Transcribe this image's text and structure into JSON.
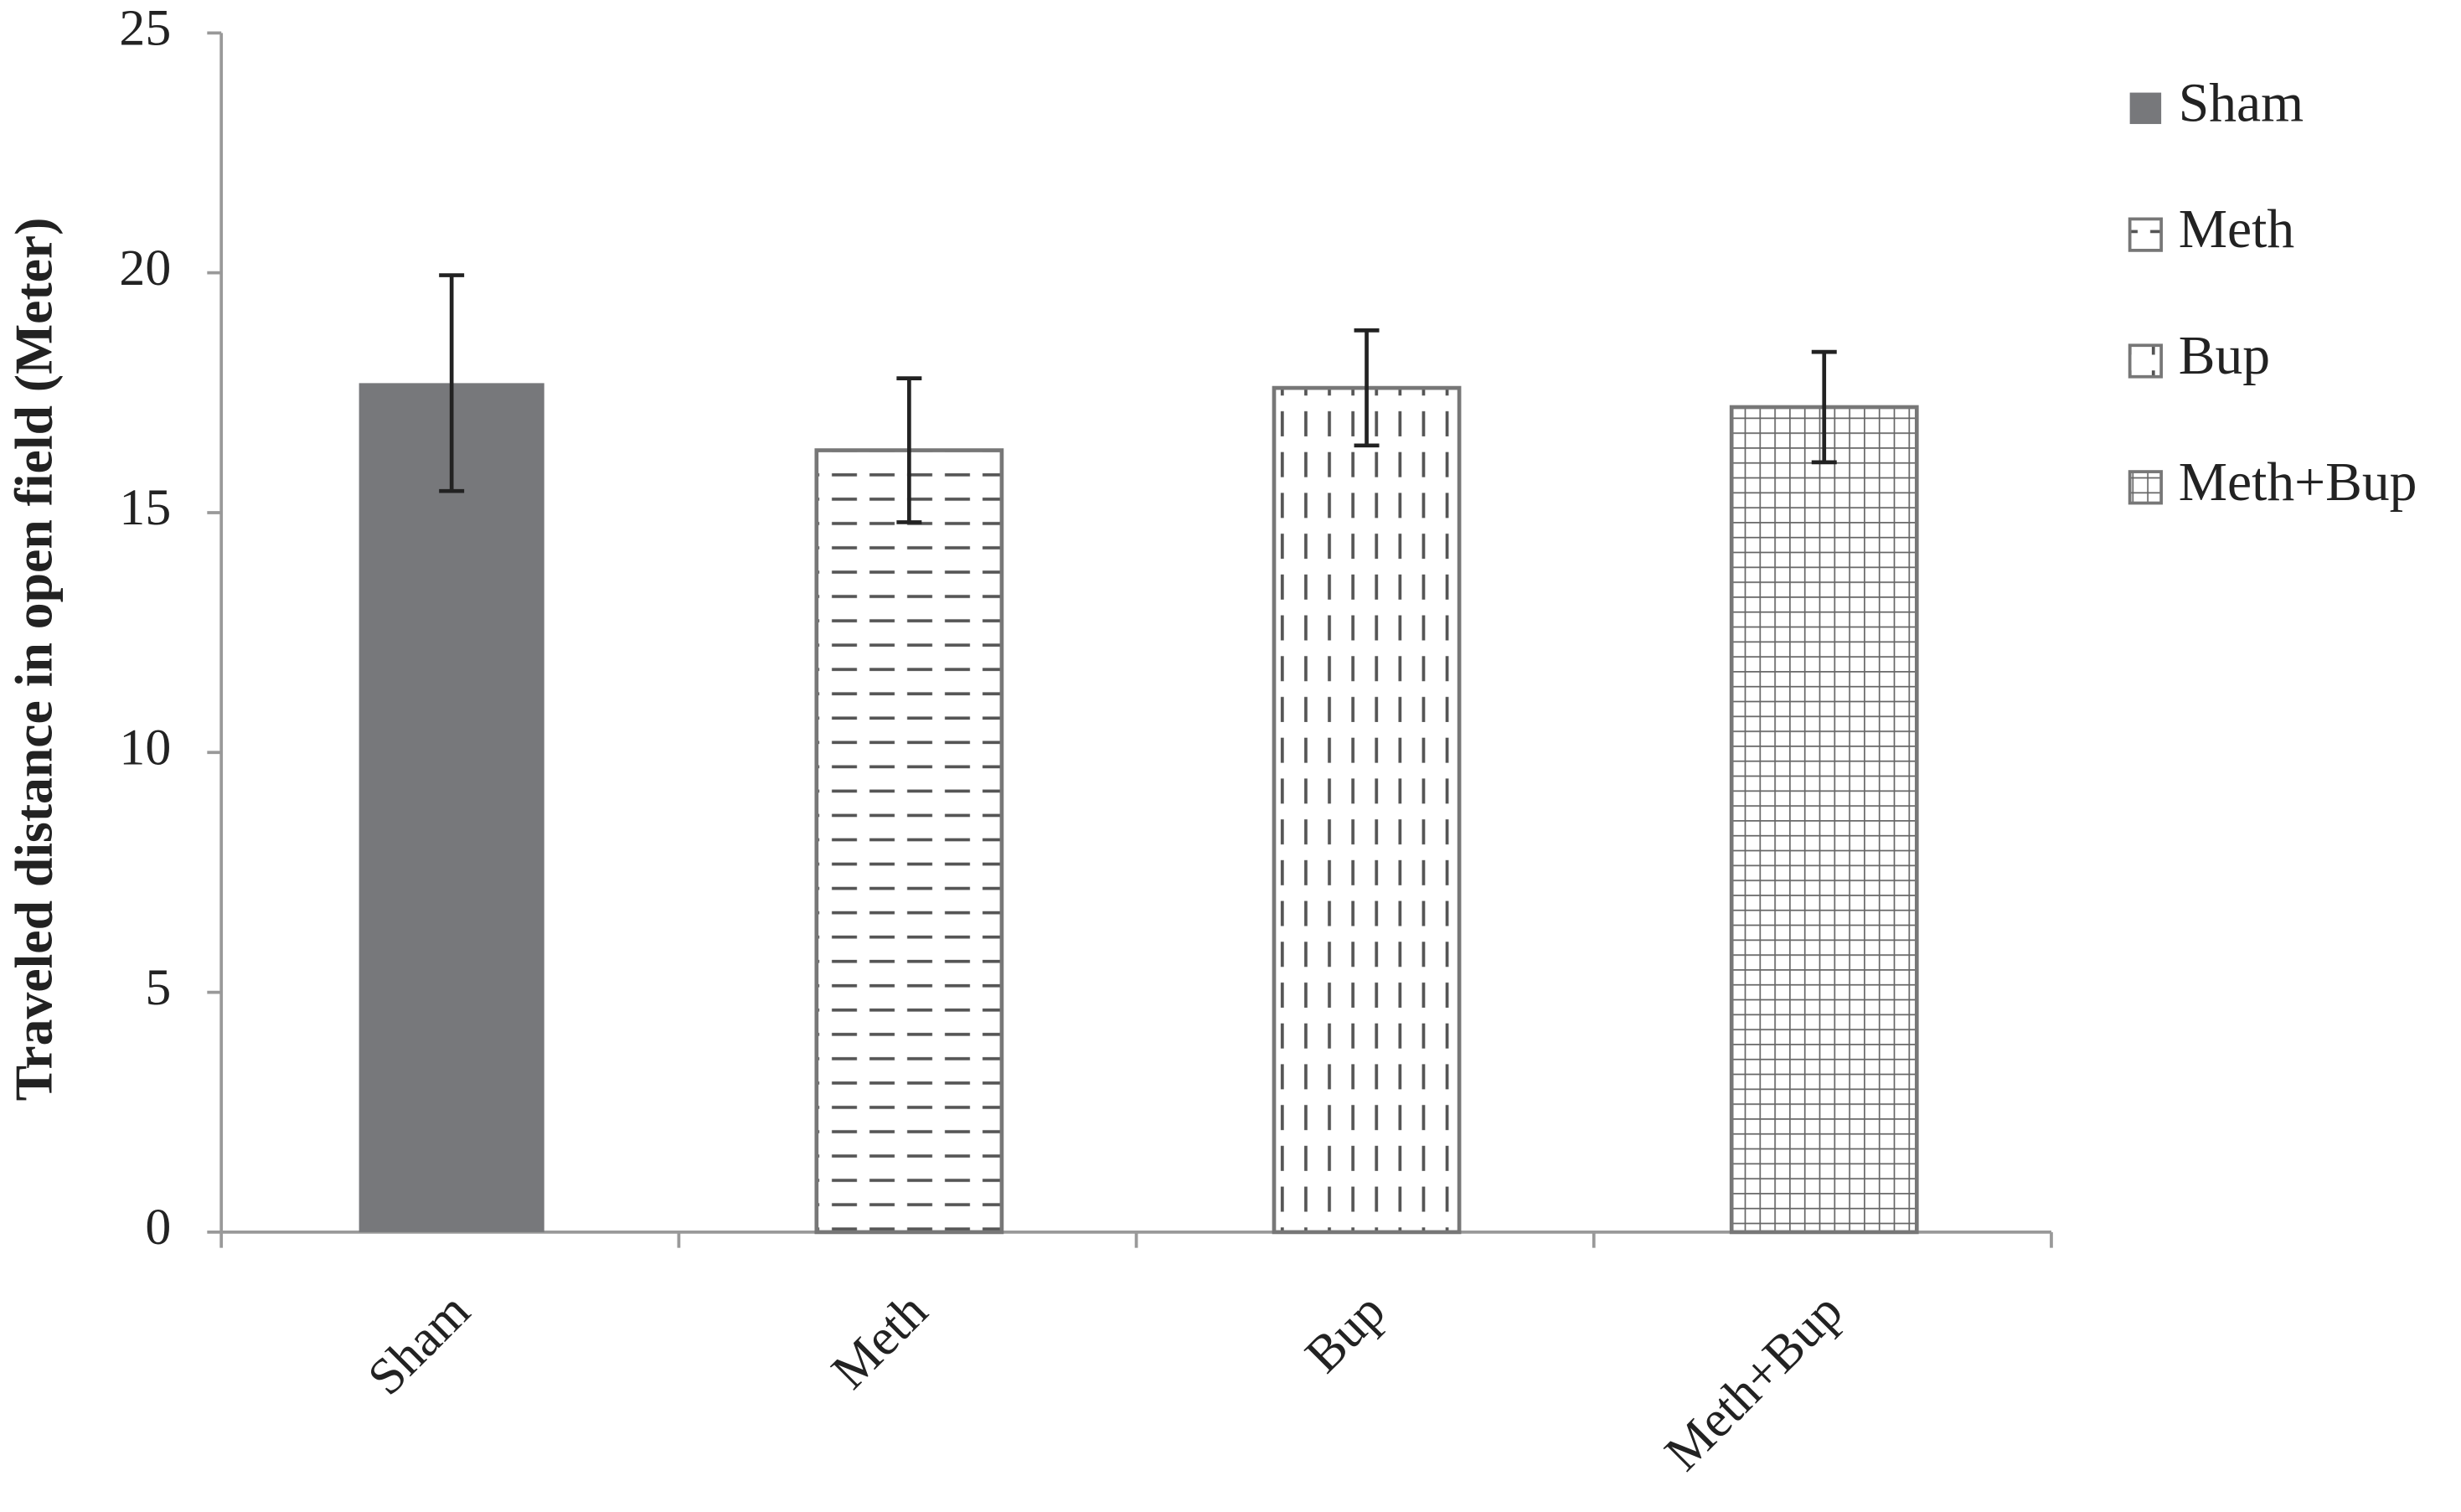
{
  "chart_data": {
    "type": "bar",
    "y_label": "Traveled distance in open field (Meter)",
    "categories": [
      "Sham",
      "Meth",
      "Bup",
      "Meth+Bup"
    ],
    "values": [
      17.7,
      16.3,
      17.6,
      17.2
    ],
    "errors": [
      2.25,
      1.5,
      1.2,
      1.15
    ],
    "color": "#77787b",
    "patterns": [
      "solid",
      "horizontal-dash",
      "vertical-dash",
      "grid"
    ],
    "ylim": [
      0,
      25
    ],
    "yticks": [
      0,
      5,
      10,
      15,
      20,
      25
    ],
    "grid": false,
    "legend": "right"
  }
}
